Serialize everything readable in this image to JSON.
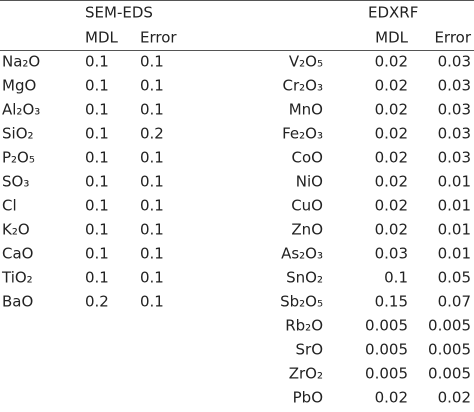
{
  "left": {
    "title": "SEM-EDS",
    "columns": [
      "MDL",
      "Error"
    ],
    "rows": [
      [
        "Na₂O",
        "0.1",
        "0.1"
      ],
      [
        "MgO",
        "0.1",
        "0.1"
      ],
      [
        "Al₂O₃",
        "0.1",
        "0.1"
      ],
      [
        "SiO₂",
        "0.1",
        "0.2"
      ],
      [
        "P₂O₅",
        "0.1",
        "0.1"
      ],
      [
        "SO₃",
        "0.1",
        "0.1"
      ],
      [
        "Cl",
        "0.1",
        "0.1"
      ],
      [
        "K₂O",
        "0.1",
        "0.1"
      ],
      [
        "CaO",
        "0.1",
        "0.1"
      ],
      [
        "TiO₂",
        "0.1",
        "0.1"
      ],
      [
        "BaO",
        "0.2",
        "0.1"
      ]
    ]
  },
  "right": {
    "title": "EDXRF",
    "columns": [
      "MDL",
      "Error"
    ],
    "rows": [
      [
        "V₂O₅",
        "0.02",
        "0.03"
      ],
      [
        "Cr₂O₃",
        "0.02",
        "0.03"
      ],
      [
        "MnO",
        "0.02",
        "0.03"
      ],
      [
        "Fe₂O₃",
        "0.02",
        "0.03"
      ],
      [
        "CoO",
        "0.02",
        "0.03"
      ],
      [
        "NiO",
        "0.02",
        "0.01"
      ],
      [
        "CuO",
        "0.02",
        "0.01"
      ],
      [
        "ZnO",
        "0.02",
        "0.01"
      ],
      [
        "As₂O₃",
        "0.03",
        "0.01"
      ],
      [
        "SnO₂",
        "0.1",
        "0.05"
      ],
      [
        "Sb₂O₅",
        "0.15",
        "0.07"
      ],
      [
        "Rb₂O",
        "0.005",
        "0.005"
      ],
      [
        "SrO",
        "0.005",
        "0.005"
      ],
      [
        "ZrO₂",
        "0.005",
        "0.005"
      ],
      [
        "PbO",
        "0.02",
        "0.02"
      ]
    ]
  }
}
